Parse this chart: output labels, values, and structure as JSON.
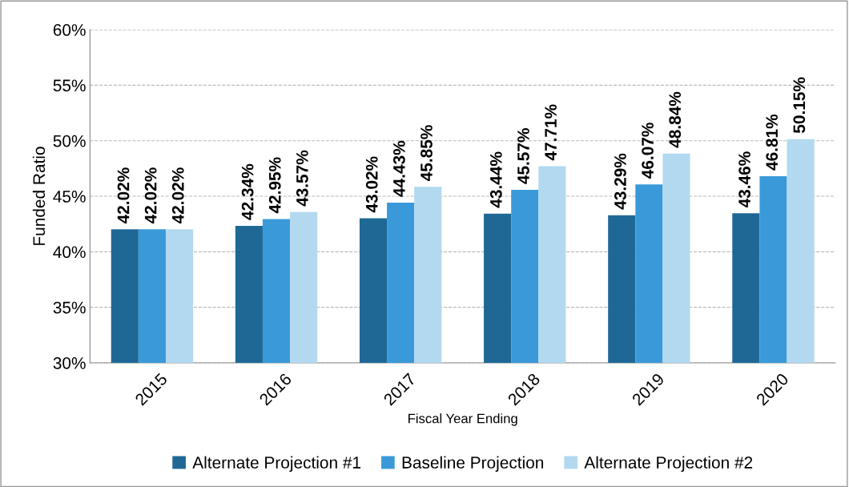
{
  "chart_data": {
    "type": "bar",
    "xlabel": "Fiscal Year Ending",
    "ylabel": "Funded Ratio",
    "categories": [
      "2015",
      "2016",
      "2017",
      "2018",
      "2019",
      "2020"
    ],
    "series": [
      {
        "name": "Alternate Projection #1",
        "color": "#1f6896",
        "values": [
          42.02,
          42.34,
          43.02,
          43.44,
          43.29,
          43.46
        ],
        "value_labels": [
          "42.02%",
          "42.34%",
          "43.02%",
          "43.44%",
          "43.29%",
          "43.46%"
        ]
      },
      {
        "name": "Baseline Projection",
        "color": "#3a9ad9",
        "values": [
          42.02,
          42.95,
          44.43,
          45.57,
          46.07,
          46.81
        ],
        "value_labels": [
          "42.02%",
          "42.95%",
          "44.43%",
          "45.57%",
          "46.07%",
          "46.81%"
        ]
      },
      {
        "name": "Alternate Projection #2",
        "color": "#b2d9f0",
        "values": [
          42.02,
          43.57,
          45.85,
          47.71,
          48.84,
          50.15
        ],
        "value_labels": [
          "42.02%",
          "43.57%",
          "45.85%",
          "47.71%",
          "48.84%",
          "50.15%"
        ]
      }
    ],
    "ylim": [
      30,
      60
    ],
    "yticks": [
      {
        "value": 30,
        "label": "30%"
      },
      {
        "value": 35,
        "label": "35%"
      },
      {
        "value": 40,
        "label": "40%"
      },
      {
        "value": 45,
        "label": "45%"
      },
      {
        "value": 50,
        "label": "50%"
      },
      {
        "value": 55,
        "label": "55%"
      },
      {
        "value": 60,
        "label": "60%"
      }
    ],
    "grid": "y",
    "legend": "bottom"
  }
}
